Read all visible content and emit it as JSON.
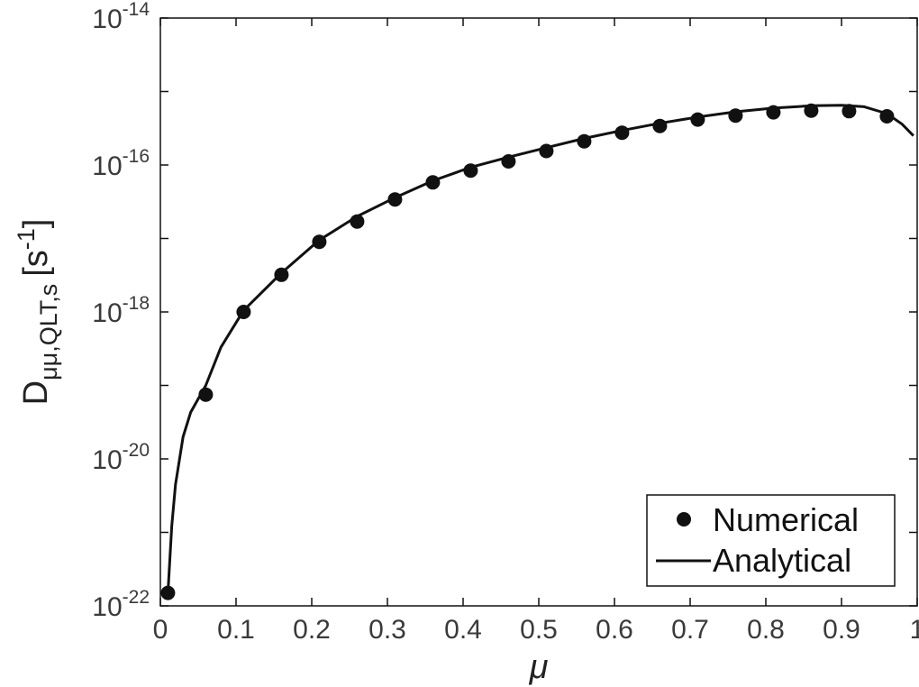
{
  "chart_data": {
    "type": "line",
    "xlabel": "μ",
    "ylabel": {
      "main": "D",
      "subscript": "μμ,QLT,s",
      "unit_open": "[s",
      "unit_exp": "-1",
      "unit_close": "]"
    },
    "xlim": [
      0,
      1
    ],
    "ylim": [
      1e-22,
      1e-14
    ],
    "yscale": "log",
    "grid": false,
    "legend_position": "bottom-right",
    "x_ticks": [
      "0",
      "0.1",
      "0.2",
      "0.3",
      "0.4",
      "0.5",
      "0.6",
      "0.7",
      "0.8",
      "0.9",
      "1"
    ],
    "y_ticks": [
      {
        "base": "10",
        "exp": "-22"
      },
      {
        "base": "10",
        "exp": "-20"
      },
      {
        "base": "10",
        "exp": "-18"
      },
      {
        "base": "10",
        "exp": "-16"
      },
      {
        "base": "10",
        "exp": "-14"
      }
    ],
    "series": [
      {
        "name": "Numerical",
        "style": "markers",
        "color": "#111111",
        "x": [
          0.01,
          0.06,
          0.11,
          0.16,
          0.21,
          0.26,
          0.31,
          0.36,
          0.41,
          0.46,
          0.51,
          0.56,
          0.61,
          0.66,
          0.71,
          0.76,
          0.81,
          0.86,
          0.91,
          0.96
        ],
        "y": [
          1.5e-22,
          7.5e-20,
          1e-18,
          3.2e-18,
          9e-18,
          1.7e-17,
          3.4e-17,
          5.8e-17,
          8.4e-17,
          1.12e-16,
          1.55e-16,
          2.1e-16,
          2.75e-16,
          3.4e-16,
          4.15e-16,
          4.7e-16,
          5.2e-16,
          5.5e-16,
          5.4e-16,
          4.6e-16
        ]
      },
      {
        "name": "Analytical",
        "style": "line",
        "color": "#111111",
        "x": [
          0.01,
          0.015,
          0.02,
          0.03,
          0.04,
          0.06,
          0.08,
          0.11,
          0.16,
          0.21,
          0.26,
          0.31,
          0.36,
          0.41,
          0.46,
          0.51,
          0.56,
          0.61,
          0.66,
          0.71,
          0.76,
          0.81,
          0.86,
          0.9,
          0.93,
          0.96,
          0.98,
          0.995
        ],
        "y": [
          1.5e-22,
          1.2e-21,
          4.5e-21,
          2e-20,
          4.3e-20,
          1e-19,
          3.3e-19,
          1.05e-18,
          3.4e-18,
          9.5e-18,
          2e-17,
          3.6e-17,
          6.1e-17,
          9.3e-17,
          1.28e-16,
          1.72e-16,
          2.3e-16,
          2.95e-16,
          3.7e-16,
          4.5e-16,
          5.3e-16,
          5.95e-16,
          6.4e-16,
          6.5e-16,
          6.2e-16,
          5e-16,
          3.6e-16,
          2.5e-16
        ]
      }
    ]
  }
}
